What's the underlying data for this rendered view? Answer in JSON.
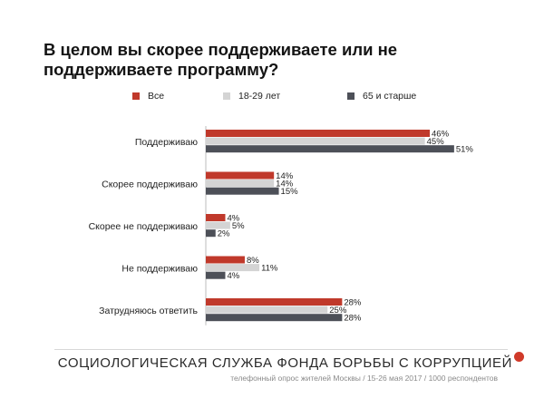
{
  "title": "В целом вы скорее поддерживаете или не поддерживаете программу?",
  "footer": {
    "org": "СОЦИОЛОГИЧЕСКАЯ СЛУЖБА ФОНДА БОРЬБЫ С КОРРУПЦИЕЙ",
    "note": "телефонный опрос жителей Москвы / 15-26 мая 2017 / 1000 респондентов",
    "dot_color": "#d03a2a"
  },
  "chart_data": {
    "type": "bar",
    "orientation": "horizontal",
    "title": "В целом вы скорее поддерживаете или не поддерживаете программу?",
    "categories": [
      "Поддерживаю",
      "Скорее поддерживаю",
      "Скорее не поддерживаю",
      "Не поддерживаю",
      "Затрудняюсь ответить"
    ],
    "series": [
      {
        "name": "Все",
        "color": "#c0392b",
        "values": [
          46,
          14,
          4,
          8,
          28
        ]
      },
      {
        "name": "18-29 лет",
        "color": "#d4d4d4",
        "values": [
          45,
          14,
          5,
          11,
          25
        ]
      },
      {
        "name": "65 и старше",
        "color": "#4d5058",
        "values": [
          51,
          15,
          2,
          4,
          28
        ]
      }
    ],
    "value_suffix": "%",
    "xlim": [
      0,
      51
    ],
    "legend_position": "top",
    "grid": false
  }
}
